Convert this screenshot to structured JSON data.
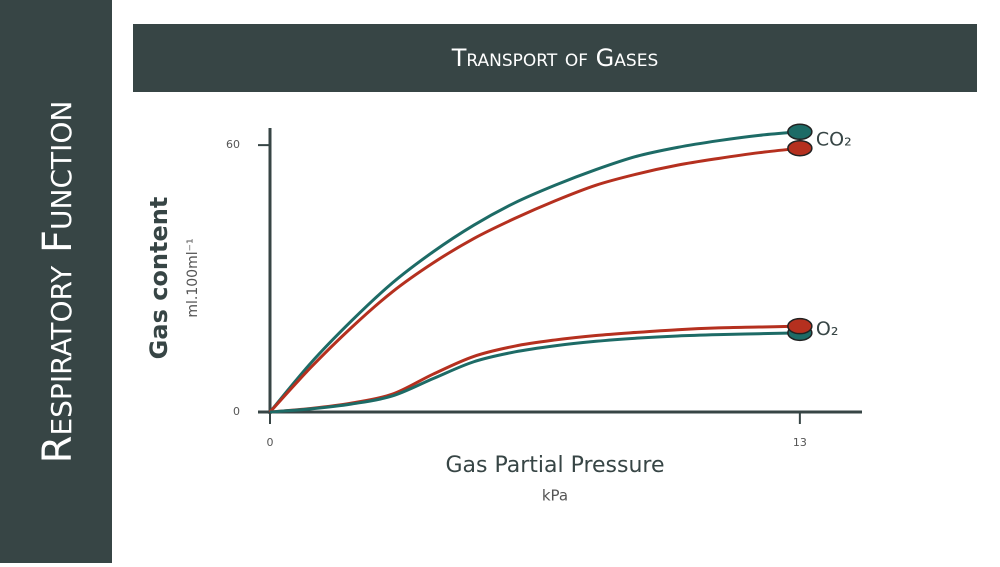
{
  "sidebar": {
    "title": "Respiratory Function"
  },
  "chart_data": {
    "type": "line",
    "title": "Transport of Gases",
    "xlabel": "Gas Partial Pressure",
    "xunit": "kPa",
    "ylabel": "Gas content",
    "yunit": "ml.100ml⁻¹",
    "x": [
      0,
      1,
      2,
      3,
      4,
      5,
      6,
      7,
      8,
      9,
      10,
      11,
      12,
      13
    ],
    "xlim": [
      0,
      14.5
    ],
    "ylim": [
      0,
      63.4
    ],
    "xticks": [
      0,
      13
    ],
    "yticks": [
      0,
      60
    ],
    "grid": false,
    "series": [
      {
        "name": "CO₂",
        "lines": [
          {
            "color": "#1d6b66",
            "values": [
              0,
              11,
              20.5,
              29,
              36,
              42,
              47,
              51,
              54.5,
              57.5,
              59.5,
              61,
              62.2,
              63
            ]
          },
          {
            "color": "#b5301f",
            "values": [
              0,
              10,
              19,
              27,
              33.5,
              39,
              43.5,
              47.5,
              51,
              53.5,
              55.5,
              57,
              58.3,
              59.3
            ]
          }
        ]
      },
      {
        "name": "O₂",
        "lines": [
          {
            "color": "#b5301f",
            "values": [
              0,
              0.8,
              2,
              4,
              8.5,
              12.5,
              14.8,
              16.2,
              17.2,
              17.9,
              18.5,
              18.9,
              19.1,
              19.3
            ]
          },
          {
            "color": "#1d6b66",
            "values": [
              0,
              0.7,
              1.8,
              3.6,
              7.5,
              11.3,
              13.5,
              14.9,
              15.9,
              16.6,
              17.1,
              17.4,
              17.6,
              17.8
            ]
          }
        ]
      }
    ]
  }
}
